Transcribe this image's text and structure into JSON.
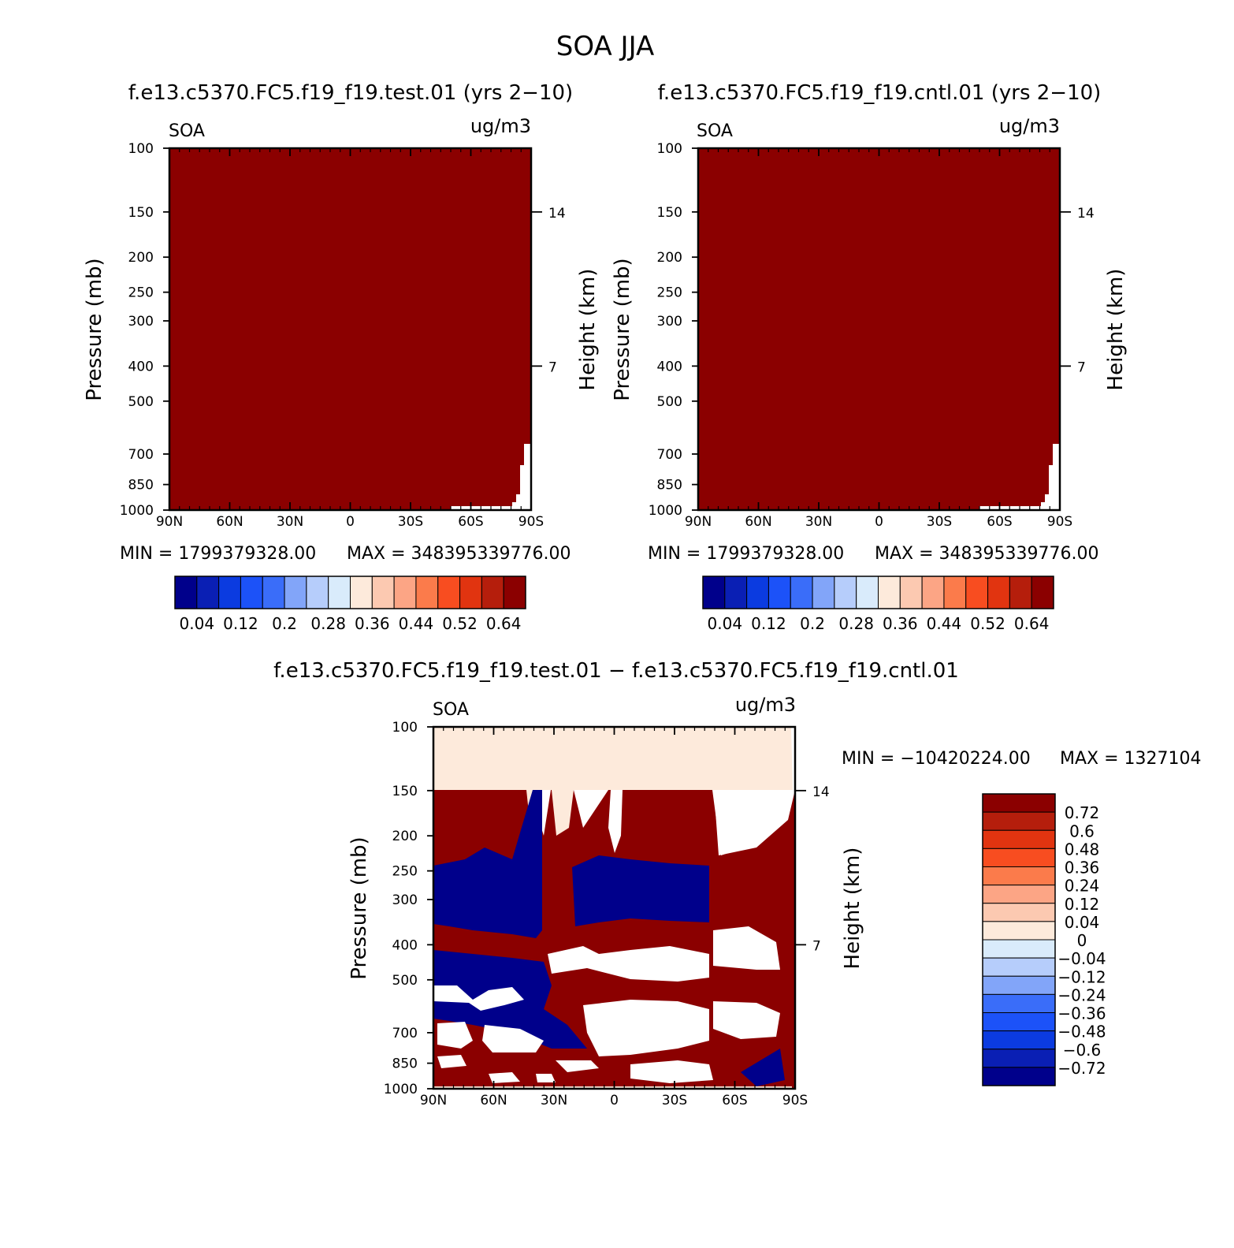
{
  "title": "SOA JJA",
  "chart_data": [
    {
      "type": "heatmap",
      "title": "f.e13.c5370.FC5.f19_f19.test.01 (yrs 2−10)",
      "variable": "SOA",
      "units": "ug/m3",
      "xlabel": "",
      "ylabel": "Pressure (mb)",
      "y2label": "Height (km)",
      "x_ticks": [
        "90N",
        "60N",
        "30N",
        "0",
        "30S",
        "60S",
        "90S"
      ],
      "x_tick_values": [
        90,
        60,
        30,
        0,
        -30,
        -60,
        -90
      ],
      "y_ticks": [
        100,
        150,
        200,
        250,
        300,
        400,
        500,
        700,
        850,
        1000
      ],
      "y2_ticks": [
        "14",
        "7"
      ],
      "y2_tick_pressures": [
        150,
        400
      ],
      "min_label": "MIN = 1799379328.00",
      "max_label": "MAX = 348395339776.00",
      "fill_color": "#8b0000",
      "colorbar": {
        "orientation": "horizontal",
        "colors": [
          "#00008b",
          "#0a1fb4",
          "#0b3be0",
          "#1c52f8",
          "#3a6df9",
          "#82a5f9",
          "#b6cdfb",
          "#d9ebfb",
          "#fdeadb",
          "#fcc9b1",
          "#fca585",
          "#fb7b4b",
          "#f84d20",
          "#e13410",
          "#b51e0c",
          "#8b0000"
        ],
        "labels": [
          "0.04",
          "0.12",
          "0.2",
          "0.28",
          "0.36",
          "0.44",
          "0.52",
          "0.64"
        ]
      }
    },
    {
      "type": "heatmap",
      "title": "f.e13.c5370.FC5.f19_f19.cntl.01 (yrs 2−10)",
      "variable": "SOA",
      "units": "ug/m3",
      "xlabel": "",
      "ylabel": "Pressure (mb)",
      "y2label": "Height (km)",
      "x_ticks": [
        "90N",
        "60N",
        "30N",
        "0",
        "30S",
        "60S",
        "90S"
      ],
      "x_tick_values": [
        90,
        60,
        30,
        0,
        -30,
        -60,
        -90
      ],
      "y_ticks": [
        100,
        150,
        200,
        250,
        300,
        400,
        500,
        700,
        850,
        1000
      ],
      "y2_ticks": [
        "14",
        "7"
      ],
      "y2_tick_pressures": [
        150,
        400
      ],
      "min_label": "MIN = 1799379328.00",
      "max_label": "MAX = 348395339776.00",
      "fill_color": "#8b0000",
      "colorbar": {
        "orientation": "horizontal",
        "colors": [
          "#00008b",
          "#0a1fb4",
          "#0b3be0",
          "#1c52f8",
          "#3a6df9",
          "#82a5f9",
          "#b6cdfb",
          "#d9ebfb",
          "#fdeadb",
          "#fcc9b1",
          "#fca585",
          "#fb7b4b",
          "#f84d20",
          "#e13410",
          "#b51e0c",
          "#8b0000"
        ],
        "labels": [
          "0.04",
          "0.12",
          "0.2",
          "0.28",
          "0.36",
          "0.44",
          "0.52",
          "0.64"
        ]
      }
    },
    {
      "type": "heatmap",
      "title": "f.e13.c5370.FC5.f19_f19.test.01 − f.e13.c5370.FC5.f19_f19.cntl.01",
      "variable": "SOA",
      "units": "ug/m3",
      "xlabel": "",
      "ylabel": "Pressure (mb)",
      "y2label": "Height (km)",
      "x_ticks": [
        "90N",
        "60N",
        "30N",
        "0",
        "30S",
        "60S",
        "90S"
      ],
      "x_tick_values": [
        90,
        60,
        30,
        0,
        -30,
        -60,
        -90
      ],
      "y_ticks": [
        100,
        150,
        200,
        250,
        300,
        400,
        500,
        700,
        850,
        1000
      ],
      "y2_ticks": [
        "14",
        "7"
      ],
      "y2_tick_pressures": [
        150,
        400
      ],
      "min_label": "MIN = −10420224.00",
      "max_label": "MAX = 1327104",
      "colorbar": {
        "orientation": "vertical",
        "colors": [
          "#8b0000",
          "#b51e0c",
          "#e13410",
          "#f84d20",
          "#fb7b4b",
          "#fca585",
          "#fcc9b1",
          "#fdeadb",
          "#d9ebfb",
          "#b6cdfb",
          "#82a5f9",
          "#3a6df9",
          "#1c52f8",
          "#0b3be0",
          "#0a1fb4",
          "#00008b"
        ],
        "labels": [
          "0.72",
          "0.6",
          "0.48",
          "0.36",
          "0.24",
          "0.12",
          "0.04",
          "0",
          "−0.04",
          "−0.12",
          "−0.24",
          "−0.36",
          "−0.48",
          "−0.6",
          "−0.72"
        ]
      }
    }
  ]
}
